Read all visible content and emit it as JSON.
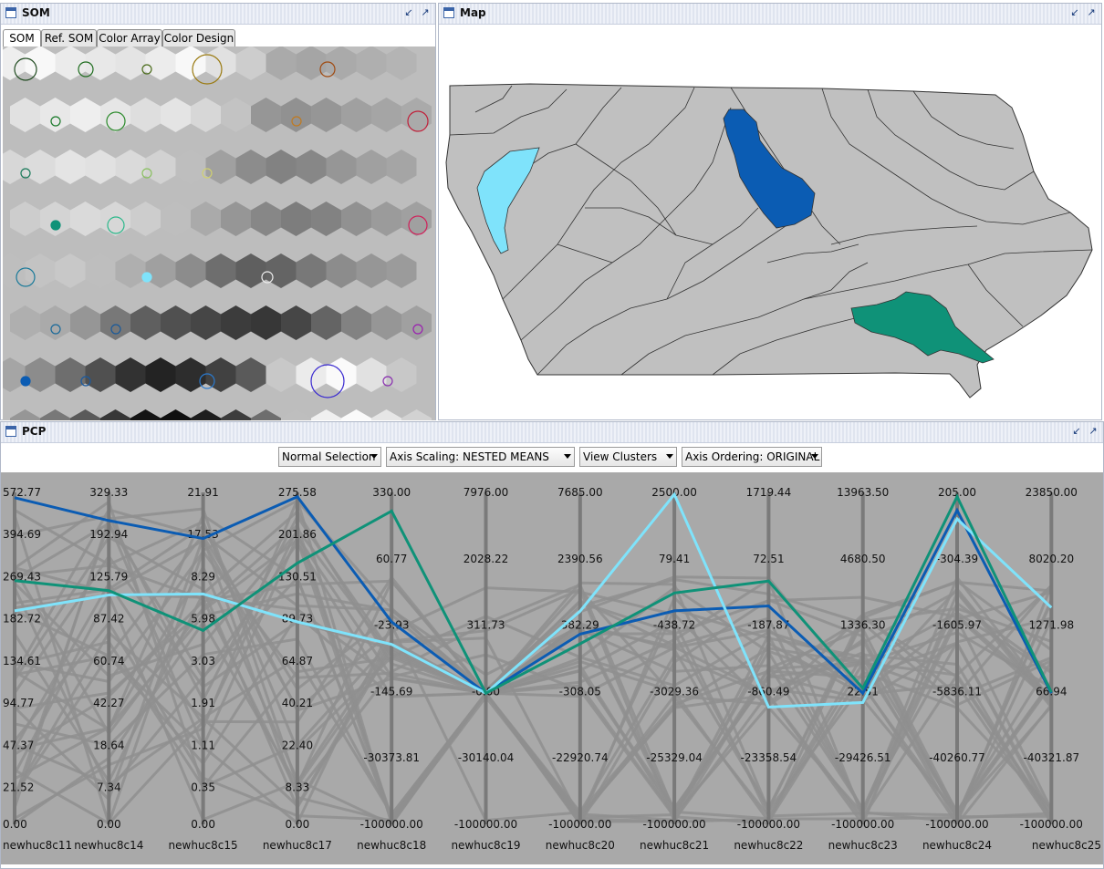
{
  "som_panel": {
    "title": "SOM",
    "tabs": [
      "SOM",
      "Ref. SOM",
      "Color Array",
      "Color Design"
    ],
    "active_tab": "SOM"
  },
  "map_panel": {
    "title": "Map"
  },
  "pcp_panel": {
    "title": "PCP",
    "controls": {
      "selection": "Normal Selection",
      "axis_scaling": "Axis Scaling: NESTED MEANS",
      "view": "View Clusters",
      "axis_ordering": "Axis Ordering: ORIGINAL"
    }
  },
  "icons": {
    "window": "window-icon",
    "minimize": "minimize-icon",
    "maximize": "maximize-icon",
    "dropdown": "chevron-down-icon"
  },
  "colors": {
    "cluster_dark_blue": "#0b5cb3",
    "cluster_light_blue": "#7fe3fb",
    "cluster_green": "#0f9278",
    "pcp_background": "#a9a9a9",
    "background_lines": "#8f8f8f",
    "map_fill": "#c0c0c0"
  },
  "chart_data": {
    "type": "line",
    "title": "",
    "axes": [
      {
        "name": "newhuc8c11",
        "ticks": [
          "572.77",
          "394.69",
          "269.43",
          "182.72",
          "134.61",
          "94.77",
          "47.37",
          "21.52",
          "0.00"
        ]
      },
      {
        "name": "newhuc8c14",
        "ticks": [
          "329.33",
          "192.94",
          "125.79",
          "87.42",
          "60.74",
          "42.27",
          "18.64",
          "7.34",
          "0.00"
        ]
      },
      {
        "name": "newhuc8c15",
        "ticks": [
          "21.91",
          "17.53",
          "8.29",
          "5.98",
          "3.03",
          "1.91",
          "1.11",
          "0.35",
          "0.00"
        ]
      },
      {
        "name": "newhuc8c17",
        "ticks": [
          "275.58",
          "201.86",
          "130.51",
          "89.73",
          "64.87",
          "40.21",
          "22.40",
          "8.33",
          "0.00"
        ]
      },
      {
        "name": "newhuc8c18",
        "ticks": [
          "330.00",
          "60.77",
          "-23.93",
          "-145.69",
          "-30373.81",
          "-100000.00"
        ]
      },
      {
        "name": "newhuc8c19",
        "ticks": [
          "7976.00",
          "2028.22",
          "311.73",
          "-0.00",
          "-30140.04",
          "-100000.00"
        ]
      },
      {
        "name": "newhuc8c20",
        "ticks": [
          "7685.00",
          "2390.56",
          "382.29",
          "-308.05",
          "-22920.74",
          "-100000.00"
        ]
      },
      {
        "name": "newhuc8c21",
        "ticks": [
          "2500.00",
          "79.41",
          "-438.72",
          "-3029.36",
          "-25329.04",
          "-100000.00"
        ]
      },
      {
        "name": "newhuc8c22",
        "ticks": [
          "1719.44",
          "72.51",
          "-187.87",
          "-860.49",
          "-23358.54",
          "-100000.00"
        ]
      },
      {
        "name": "newhuc8c23",
        "ticks": [
          "13963.50",
          "4680.50",
          "1336.30",
          "22.51",
          "-29426.51",
          "-100000.00"
        ]
      },
      {
        "name": "newhuc8c24",
        "ticks": [
          "205.00",
          "-304.39",
          "-1605.97",
          "-5836.11",
          "-40260.77",
          "-100000.00"
        ]
      },
      {
        "name": "newhuc8c25",
        "ticks": [
          "23850.00",
          "8020.20",
          "1271.98",
          "66.94",
          "-40321.87",
          "-100000.00"
        ]
      }
    ],
    "series": [
      {
        "color": "#0b5cb3",
        "values": [
          0.984,
          0.915,
          0.861,
          0.987,
          0.61,
          0.395,
          0.573,
          0.643,
          0.658,
          0.395,
          0.946,
          0.395
        ]
      },
      {
        "color": "#7fe3fb",
        "values": [
          0.643,
          0.691,
          0.694,
          0.61,
          0.542,
          0.395,
          0.642,
          0.994,
          0.353,
          0.367,
          0.92,
          0.653
        ]
      },
      {
        "color": "#0f9278",
        "values": [
          0.734,
          0.704,
          0.584,
          0.787,
          0.944,
          0.395,
          0.544,
          0.697,
          0.733,
          0.41,
          0.987,
          0.398
        ]
      }
    ]
  }
}
